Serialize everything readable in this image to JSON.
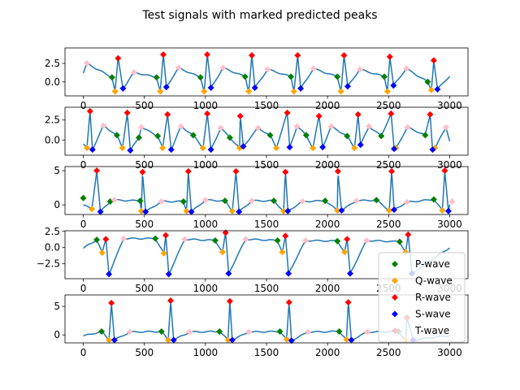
{
  "chart_data": {
    "type": "line",
    "title": "Test signals with marked predicted peaks",
    "legend": {
      "placement": "lower-right of subplot 4",
      "entries": [
        {
          "key": "P",
          "label": "P-wave",
          "color": "#008000",
          "marker": "diamond"
        },
        {
          "key": "Q",
          "label": "Q-wave",
          "color": "#ffa500",
          "marker": "diamond"
        },
        {
          "key": "R",
          "label": "R-wave",
          "color": "#ff0000",
          "marker": "diamond"
        },
        {
          "key": "S",
          "label": "S-wave",
          "color": "#0000ff",
          "marker": "diamond"
        },
        {
          "key": "T",
          "label": "T-wave",
          "color": "#ffc0cb",
          "marker": "diamond"
        }
      ]
    },
    "signal_color": "#1f77b4",
    "xlim": [
      -150,
      3150
    ],
    "xticks": [
      0,
      500,
      1000,
      1500,
      2000,
      2500,
      3000
    ],
    "subplots": [
      {
        "ylim": [
          -1.9,
          4.6
        ],
        "yticks": [
          0,
          2.5
        ],
        "ytick_labels": [
          "0.0",
          "2.5"
        ],
        "baseline": 0.2,
        "start": 1.2,
        "end": 0.8,
        "peaks": {
          "P": [
            [
              235,
              0.6
            ],
            [
              600,
              0.6
            ],
            [
              960,
              0.6
            ],
            [
              1325,
              0.7
            ],
            [
              1700,
              0.7
            ],
            [
              2080,
              0.7
            ],
            [
              2465,
              0.7
            ],
            [
              2820,
              0.0
            ]
          ],
          "Q": [
            [
              260,
              -1.3
            ],
            [
              630,
              -1.3
            ],
            [
              990,
              -1.3
            ],
            [
              1355,
              -1.3
            ],
            [
              1725,
              -1.3
            ],
            [
              2110,
              -1.3
            ],
            [
              2490,
              -1.3
            ],
            [
              2850,
              -1.1
            ]
          ],
          "R": [
            [
              285,
              3.2
            ],
            [
              655,
              3.7
            ],
            [
              1015,
              3.7
            ],
            [
              1380,
              3.6
            ],
            [
              1755,
              3.6
            ],
            [
              2135,
              3.6
            ],
            [
              2510,
              3.4
            ],
            [
              2870,
              2.9
            ]
          ],
          "S": [
            [
              325,
              -0.9
            ],
            [
              680,
              -0.7
            ],
            [
              1045,
              -0.8
            ],
            [
              1405,
              -0.8
            ],
            [
              1780,
              -0.9
            ],
            [
              2165,
              -0.6
            ],
            [
              2540,
              -0.5
            ],
            [
              2900,
              -1.0
            ]
          ],
          "T": [
            [
              30,
              2.5
            ],
            [
              415,
              1.3
            ],
            [
              780,
              1.9
            ],
            [
              1145,
              1.9
            ],
            [
              1510,
              1.7
            ],
            [
              1885,
              1.8
            ],
            [
              2265,
              1.7
            ],
            [
              2645,
              1.8
            ]
          ]
        }
      },
      {
        "ylim": [
          -1.9,
          4.1
        ],
        "yticks": [
          0,
          2.5
        ],
        "ytick_labels": [
          "0.0",
          "2.5"
        ],
        "baseline": -0.1,
        "start": -0.5,
        "end": -0.1,
        "peaks": {
          "P": [
            [
              275,
              0.6
            ],
            [
              455,
              0.3
            ],
            [
              610,
              0.5
            ],
            [
              900,
              0.6
            ],
            [
              1200,
              0.3
            ],
            [
              1530,
              0.6
            ],
            [
              1825,
              0.6
            ],
            [
              2160,
              0.5
            ],
            [
              2440,
              0.5
            ],
            [
              2800,
              0.6
            ]
          ],
          "Q": [
            [
              30,
              -1.0
            ],
            [
              320,
              -1.0
            ],
            [
              650,
              -1.0
            ],
            [
              980,
              -1.0
            ],
            [
              1280,
              -1.0
            ],
            [
              1580,
              -1.0
            ],
            [
              1880,
              -1.0
            ],
            [
              2220,
              -1.0
            ],
            [
              2560,
              -1.0
            ],
            [
              2880,
              -1.0
            ]
          ],
          "R": [
            [
              55,
              3.6
            ],
            [
              360,
              3.4
            ],
            [
              690,
              3.2
            ],
            [
              1015,
              3.3
            ],
            [
              1285,
              3.0
            ],
            [
              1670,
              3.4
            ],
            [
              1930,
              3.0
            ],
            [
              2250,
              3.2
            ],
            [
              2520,
              3.3
            ],
            [
              2840,
              3.2
            ]
          ],
          "S": [
            [
              75,
              -1.2
            ],
            [
              385,
              -1.3
            ],
            [
              720,
              -1.2
            ],
            [
              1045,
              -1.2
            ],
            [
              1310,
              -0.8
            ],
            [
              1690,
              -0.9
            ],
            [
              1960,
              -0.9
            ],
            [
              2270,
              -0.6
            ],
            [
              2545,
              -1.1
            ],
            [
              2860,
              -1.2
            ]
          ],
          "T": [
            [
              165,
              1.8
            ],
            [
              475,
              1.6
            ],
            [
              800,
              1.7
            ],
            [
              1125,
              1.5
            ],
            [
              1430,
              1.5
            ],
            [
              1750,
              1.7
            ],
            [
              2030,
              1.7
            ],
            [
              2340,
              1.7
            ],
            [
              2655,
              1.6
            ],
            [
              2970,
              1.6
            ]
          ]
        }
      },
      {
        "ylim": [
          -1.4,
          5.6
        ],
        "yticks": [
          0,
          5
        ],
        "ytick_labels": [
          "0",
          "5"
        ],
        "baseline": 0.0,
        "start": 0.0,
        "end": 0.1,
        "peaks": {
          "P": [
            [
              0,
              1.0
            ],
            [
              220,
              0.5
            ],
            [
              465,
              0.6
            ],
            [
              820,
              0.5
            ],
            [
              1160,
              0.6
            ],
            [
              1560,
              0.6
            ],
            [
              1980,
              0.6
            ],
            [
              2400,
              0.7
            ],
            [
              2870,
              0.8
            ]
          ],
          "Q": [
            [
              70,
              -0.6
            ],
            [
              475,
              -0.9
            ],
            [
              845,
              -0.9
            ],
            [
              1220,
              -0.9
            ],
            [
              1640,
              -0.9
            ],
            [
              2080,
              -0.8
            ],
            [
              2505,
              -0.8
            ],
            [
              2940,
              -0.8
            ]
          ],
          "R": [
            [
              110,
              5.0
            ],
            [
              485,
              4.8
            ],
            [
              860,
              4.9
            ],
            [
              1250,
              4.9
            ],
            [
              1655,
              4.8
            ],
            [
              2085,
              4.9
            ],
            [
              2525,
              4.9
            ],
            [
              2960,
              5.0
            ]
          ],
          "S": [
            [
              140,
              -1.0
            ],
            [
              510,
              -1.0
            ],
            [
              885,
              -1.0
            ],
            [
              1275,
              -1.0
            ],
            [
              1675,
              -0.9
            ],
            [
              2115,
              -0.8
            ],
            [
              2545,
              -0.7
            ],
            [
              2990,
              -0.9
            ]
          ],
          "T": [
            [
              255,
              0.7
            ],
            [
              640,
              0.5
            ],
            [
              1000,
              0.7
            ],
            [
              1380,
              0.6
            ],
            [
              1795,
              0.5
            ],
            [
              2235,
              0.6
            ],
            [
              2650,
              0.4
            ],
            [
              3020,
              0.5
            ]
          ]
        }
      },
      {
        "ylim": [
          -4.8,
          2.6
        ],
        "yticks": [
          -2.5,
          0,
          2.5
        ],
        "ytick_labels": [
          "−2.5",
          "0.0",
          "2.5"
        ],
        "baseline": 0.0,
        "start": -0.1,
        "end": 0.0,
        "peaks": {
          "P": [
            [
              110,
              1.2
            ],
            [
              590,
              1.4
            ],
            [
              1080,
              1.1
            ],
            [
              1590,
              1.1
            ],
            [
              2080,
              1.0
            ],
            [
              2590,
              0.9
            ]
          ],
          "Q": [
            [
              155,
              -0.8
            ],
            [
              660,
              -0.9
            ],
            [
              1140,
              -0.7
            ],
            [
              1630,
              -0.7
            ],
            [
              2140,
              -0.7
            ],
            [
              2640,
              -0.7
            ]
          ],
          "R": [
            [
              185,
              1.3
            ],
            [
              675,
              1.9
            ],
            [
              1165,
              2.3
            ],
            [
              1655,
              1.8
            ],
            [
              2160,
              1.3
            ],
            [
              2660,
              2.0
            ]
          ],
          "S": [
            [
              210,
              -4.1
            ],
            [
              700,
              -4.1
            ],
            [
              1190,
              -4.0
            ],
            [
              1680,
              -4.0
            ],
            [
              2185,
              -4.0
            ],
            [
              2690,
              -4.0
            ]
          ],
          "T": [
            [
              330,
              1.4
            ],
            [
              830,
              1.3
            ],
            [
              1330,
              1.3
            ],
            [
              1820,
              1.1
            ],
            [
              2320,
              1.1
            ]
          ]
        }
      },
      {
        "ylim": [
          -1.4,
          7.0
        ],
        "yticks": [
          0,
          5
        ],
        "ytick_labels": [
          "0",
          "5"
        ],
        "baseline": -0.2,
        "start": -0.2,
        "end": -0.1,
        "peaks": {
          "P": [
            [
              150,
              0.6
            ],
            [
              640,
              0.6
            ],
            [
              1115,
              0.6
            ],
            [
              1610,
              0.6
            ],
            [
              2095,
              0.6
            ],
            [
              2580,
              0.6
            ]
          ],
          "Q": [
            [
              210,
              -0.9
            ],
            [
              695,
              -0.9
            ],
            [
              1185,
              -0.9
            ],
            [
              1665,
              -0.8
            ],
            [
              2155,
              -0.8
            ],
            [
              2640,
              -0.9
            ]
          ],
          "R": [
            [
              230,
              5.6
            ],
            [
              715,
              6.0
            ],
            [
              1200,
              5.9
            ],
            [
              1685,
              5.7
            ],
            [
              2170,
              5.7
            ],
            [
              2650,
              3.0
            ]
          ],
          "S": [
            [
              255,
              -0.9
            ],
            [
              740,
              -0.9
            ],
            [
              1220,
              -0.9
            ],
            [
              1705,
              -1.0
            ],
            [
              2195,
              -0.9
            ],
            [
              2700,
              -0.9
            ]
          ],
          "T": [
            [
              380,
              0.5
            ],
            [
              870,
              0.5
            ],
            [
              1355,
              0.5
            ],
            [
              1840,
              0.5
            ],
            [
              2325,
              0.5
            ]
          ]
        }
      }
    ]
  }
}
